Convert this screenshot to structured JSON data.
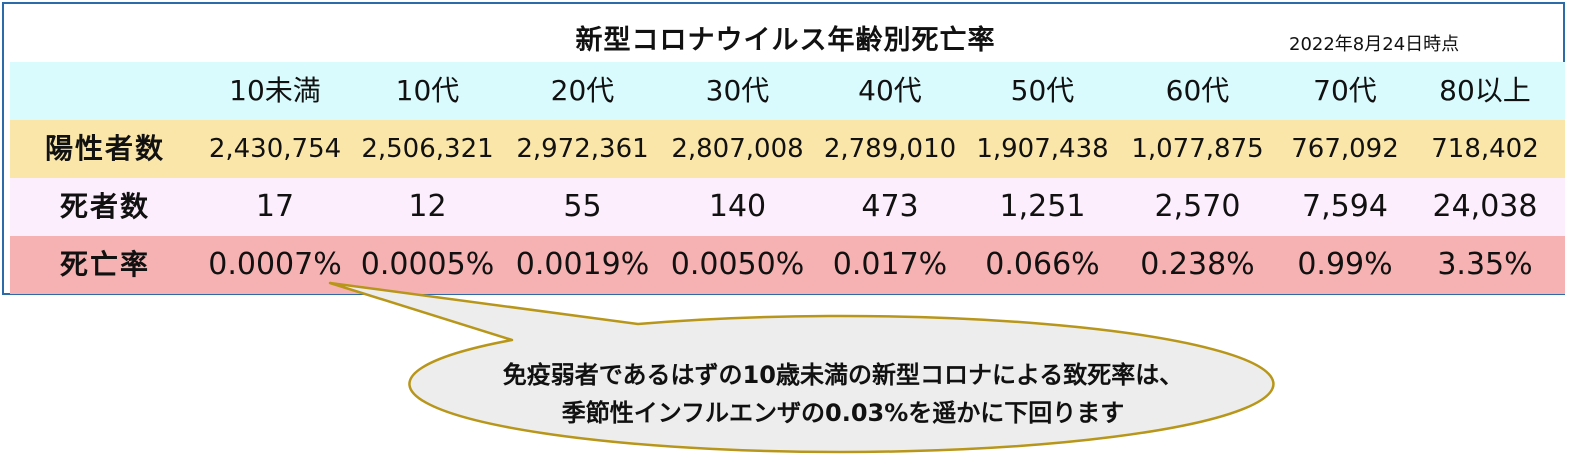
{
  "title": "新型コロナウイルス年齢別死亡率",
  "date": "2022年8月24日時点",
  "columns": [
    "10未満",
    "10代",
    "20代",
    "30代",
    "40代",
    "50代",
    "60代",
    "70代",
    "80以上"
  ],
  "rows": [
    {
      "label": "陽性者数",
      "values": [
        "2,430,754",
        "2,506,321",
        "2,972,361",
        "2,807,008",
        "2,789,010",
        "1,907,438",
        "1,077,875",
        "767,092",
        "718,402"
      ]
    },
    {
      "label": "死者数",
      "values": [
        "17",
        "12",
        "55",
        "140",
        "473",
        "1,251",
        "2,570",
        "7,594",
        "24,038"
      ]
    },
    {
      "label": "死亡率",
      "values": [
        "0.0007%",
        "0.0005%",
        "0.0019%",
        "0.0050%",
        "0.017%",
        "0.066%",
        "0.238%",
        "0.99%",
        "3.35%"
      ]
    }
  ],
  "callout": {
    "line1": "免疫弱者であるはずの10歳未満の新型コロナによる致死率は、",
    "line2": "季節性インフルエンザの0.03%を遥かに下回ります"
  },
  "colors": {
    "header_row": "#d9fbfd",
    "positive_row": "#fbe6aa",
    "deaths_row": "#fdeefe",
    "rate_row": "#f6b2b2",
    "callout_fill": "#ededed",
    "callout_stroke": "#b8961a",
    "frame": "#2c6aa8"
  }
}
